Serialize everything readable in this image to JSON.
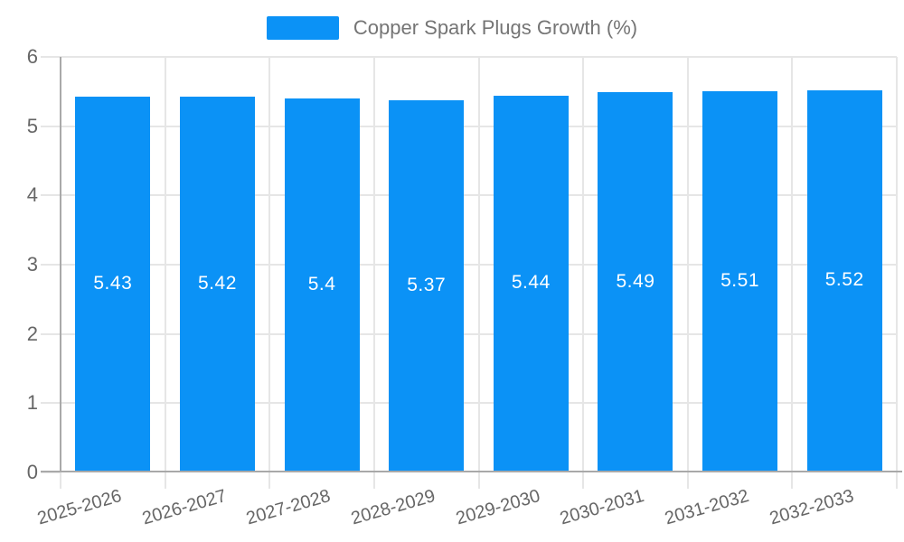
{
  "legend": {
    "position": "top"
  },
  "chart_data": {
    "type": "bar",
    "title": "Copper Spark Plugs Growth (%)",
    "categories": [
      "2025-2026",
      "2026-2027",
      "2027-2028",
      "2028-2029",
      "2029-2030",
      "2030-2031",
      "2031-2032",
      "2032-2033"
    ],
    "series": [
      {
        "name": "Copper Spark Plugs Growth (%)",
        "values": [
          5.43,
          5.42,
          5.4,
          5.37,
          5.44,
          5.49,
          5.51,
          5.52
        ],
        "display_values": [
          "5.43",
          "5.42",
          "5.4",
          "5.37",
          "5.44",
          "5.49",
          "5.51",
          "5.52"
        ],
        "color": "#0b92f6"
      }
    ],
    "xlabel": "",
    "ylabel": "",
    "ylim": [
      0,
      6
    ],
    "yticks": [
      0,
      1,
      2,
      3,
      4,
      5,
      6
    ],
    "grid": true,
    "legend_position": "top",
    "value_labels_shown": true,
    "value_label_color": "#ffffff"
  },
  "colors": {
    "bar": "#0b92f6",
    "grid": "#e6e6e6",
    "axis": "#a9a9a9",
    "tick_text": "#666666",
    "legend_text": "#757575",
    "background": "#ffffff"
  }
}
